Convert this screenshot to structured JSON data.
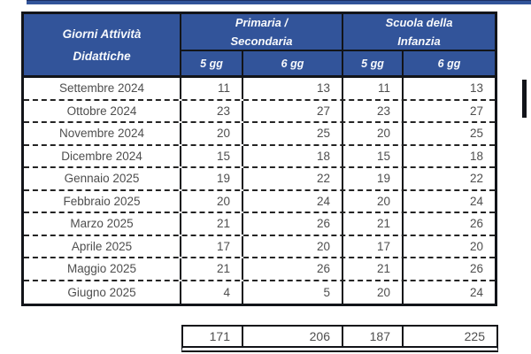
{
  "table": {
    "corner": {
      "line1": "Giorni Attività",
      "line2": "Didattiche"
    },
    "groups": {
      "primaria": {
        "line1": "Primaria /",
        "line2": "Secondaria"
      },
      "infanzia": {
        "line1": "Scuola della",
        "line2": "Infanzia"
      }
    },
    "subheaders": [
      "5 gg",
      "6 gg",
      "5 gg",
      "6 gg"
    ],
    "rows": [
      {
        "month": "Settembre 2024",
        "values": [
          "11",
          "13",
          "11",
          "13"
        ]
      },
      {
        "month": "Ottobre 2024",
        "values": [
          "23",
          "27",
          "23",
          "27"
        ]
      },
      {
        "month": "Novembre 2024",
        "values": [
          "20",
          "25",
          "20",
          "25"
        ]
      },
      {
        "month": "Dicembre 2024",
        "values": [
          "15",
          "18",
          "15",
          "18"
        ]
      },
      {
        "month": "Gennaio 2025",
        "values": [
          "19",
          "22",
          "19",
          "22"
        ]
      },
      {
        "month": "Febbraio 2025",
        "values": [
          "20",
          "24",
          "20",
          "24"
        ]
      },
      {
        "month": "Marzo 2025",
        "values": [
          "21",
          "26",
          "21",
          "26"
        ]
      },
      {
        "month": "Aprile 2025",
        "values": [
          "17",
          "20",
          "17",
          "20"
        ]
      },
      {
        "month": "Maggio 2025",
        "values": [
          "21",
          "26",
          "21",
          "26"
        ]
      },
      {
        "month": "Giugno 2025",
        "values": [
          "4",
          "5",
          "20",
          "24"
        ]
      }
    ],
    "totals": [
      "171",
      "206",
      "187",
      "225"
    ]
  },
  "colors": {
    "header_blue": "#32549a",
    "border_dark": "#121419",
    "body_text": "#4e4e4e",
    "header_text": "#f7f9fc"
  }
}
